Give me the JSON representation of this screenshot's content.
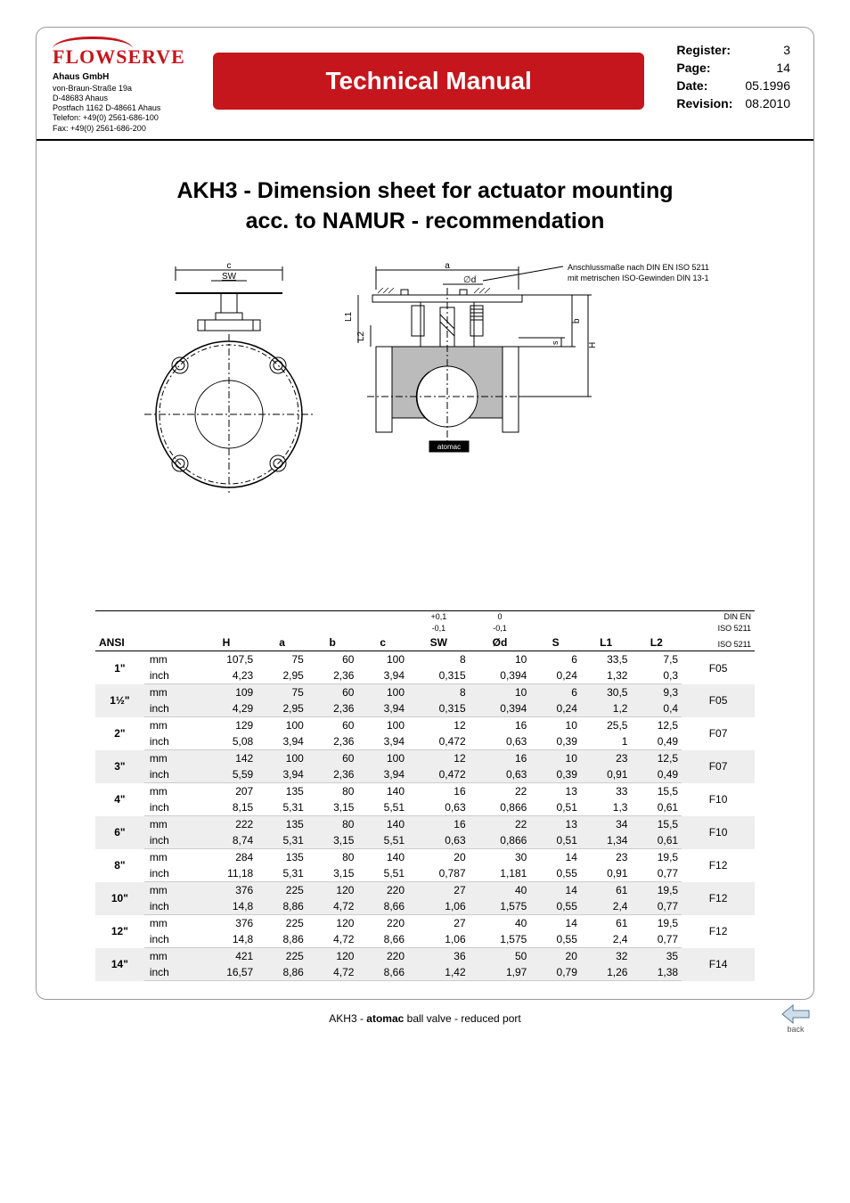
{
  "header": {
    "logo_text": "FLOWSERVE",
    "company_name": "Ahaus GmbH",
    "address_lines": [
      "von-Braun-Straße 19a",
      "D-48683 Ahaus",
      "Postfach 1162 D-48661 Ahaus",
      "Telefon: +49(0) 2561-686-100",
      "Fax: +49(0) 2561-686-200"
    ],
    "banner_title": "Technical Manual",
    "meta": {
      "register_label": "Register:",
      "register_value": "3",
      "page_label": "Page:",
      "page_value": "14",
      "date_label": "Date:",
      "date_value": "05.1996",
      "revision_label": "Revision:",
      "revision_value": "08.2010"
    }
  },
  "title_line1": "AKH3 - Dimension sheet for actuator mounting",
  "title_line2": "acc. to  NAMUR - recommendation",
  "diagram_note_line1": "Anschlussmaße nach DIN EN ISO 5211",
  "diagram_note_line2": "mit metrischen ISO-Gewinden DIN 13-1",
  "diagram_labels": {
    "c": "c",
    "SW": "SW",
    "a": "a",
    "phi_d": "∅d",
    "L1": "L1",
    "L2": "L2",
    "b": "b",
    "s": "s",
    "H": "H",
    "brand": "atomac"
  },
  "table": {
    "head": {
      "ansi": "ANSI",
      "H": "H",
      "a": "a",
      "b": "b",
      "c": "c",
      "SW": "SW",
      "SW_tol_top": "+0,1",
      "SW_tol_bot": "-0,1",
      "Od": "Ød",
      "Od_tol_top": "0",
      "Od_tol_bot": "-0,1",
      "S": "S",
      "L1": "L1",
      "L2": "L2",
      "iso_top": "DIN EN",
      "iso_mid": "ISO 5211",
      "iso_bot": "ISO 5211"
    },
    "rows": [
      {
        "size": "1\"",
        "unit1": "mm",
        "unit2": "inch",
        "iso": "F05",
        "mm": {
          "H": "107,5",
          "a": "75",
          "b": "60",
          "c": "100",
          "SW": "8",
          "Od": "10",
          "S": "6",
          "L1": "33,5",
          "L2": "7,5"
        },
        "in": {
          "H": "4,23",
          "a": "2,95",
          "b": "2,36",
          "c": "3,94",
          "SW": "0,315",
          "Od": "0,394",
          "S": "0,24",
          "L1": "1,32",
          "L2": "0,3"
        }
      },
      {
        "size": "1½\"",
        "unit1": "mm",
        "unit2": "inch",
        "iso": "F05",
        "alt": true,
        "mm": {
          "H": "109",
          "a": "75",
          "b": "60",
          "c": "100",
          "SW": "8",
          "Od": "10",
          "S": "6",
          "L1": "30,5",
          "L2": "9,3"
        },
        "in": {
          "H": "4,29",
          "a": "2,95",
          "b": "2,36",
          "c": "3,94",
          "SW": "0,315",
          "Od": "0,394",
          "S": "0,24",
          "L1": "1,2",
          "L2": "0,4"
        }
      },
      {
        "size": "2\"",
        "unit1": "mm",
        "unit2": "inch",
        "iso": "F07",
        "mm": {
          "H": "129",
          "a": "100",
          "b": "60",
          "c": "100",
          "SW": "12",
          "Od": "16",
          "S": "10",
          "L1": "25,5",
          "L2": "12,5"
        },
        "in": {
          "H": "5,08",
          "a": "3,94",
          "b": "2,36",
          "c": "3,94",
          "SW": "0,472",
          "Od": "0,63",
          "S": "0,39",
          "L1": "1",
          "L2": "0,49"
        }
      },
      {
        "size": "3\"",
        "unit1": "mm",
        "unit2": "inch",
        "iso": "F07",
        "alt": true,
        "mm": {
          "H": "142",
          "a": "100",
          "b": "60",
          "c": "100",
          "SW": "12",
          "Od": "16",
          "S": "10",
          "L1": "23",
          "L2": "12,5"
        },
        "in": {
          "H": "5,59",
          "a": "3,94",
          "b": "2,36",
          "c": "3,94",
          "SW": "0,472",
          "Od": "0,63",
          "S": "0,39",
          "L1": "0,91",
          "L2": "0,49"
        }
      },
      {
        "size": "4\"",
        "unit1": "mm",
        "unit2": "inch",
        "iso": "F10",
        "mm": {
          "H": "207",
          "a": "135",
          "b": "80",
          "c": "140",
          "SW": "16",
          "Od": "22",
          "S": "13",
          "L1": "33",
          "L2": "15,5"
        },
        "in": {
          "H": "8,15",
          "a": "5,31",
          "b": "3,15",
          "c": "5,51",
          "SW": "0,63",
          "Od": "0,866",
          "S": "0,51",
          "L1": "1,3",
          "L2": "0,61"
        }
      },
      {
        "size": "6\"",
        "unit1": "mm",
        "unit2": "inch",
        "iso": "F10",
        "alt": true,
        "mm": {
          "H": "222",
          "a": "135",
          "b": "80",
          "c": "140",
          "SW": "16",
          "Od": "22",
          "S": "13",
          "L1": "34",
          "L2": "15,5"
        },
        "in": {
          "H": "8,74",
          "a": "5,31",
          "b": "3,15",
          "c": "5,51",
          "SW": "0,63",
          "Od": "0,866",
          "S": "0,51",
          "L1": "1,34",
          "L2": "0,61"
        }
      },
      {
        "size": "8\"",
        "unit1": "mm",
        "unit2": "inch",
        "iso": "F12",
        "mm": {
          "H": "284",
          "a": "135",
          "b": "80",
          "c": "140",
          "SW": "20",
          "Od": "30",
          "S": "14",
          "L1": "23",
          "L2": "19,5"
        },
        "in": {
          "H": "11,18",
          "a": "5,31",
          "b": "3,15",
          "c": "5,51",
          "SW": "0,787",
          "Od": "1,181",
          "S": "0,55",
          "L1": "0,91",
          "L2": "0,77"
        }
      },
      {
        "size": "10\"",
        "unit1": "mm",
        "unit2": "inch",
        "iso": "F12",
        "alt": true,
        "mm": {
          "H": "376",
          "a": "225",
          "b": "120",
          "c": "220",
          "SW": "27",
          "Od": "40",
          "S": "14",
          "L1": "61",
          "L2": "19,5"
        },
        "in": {
          "H": "14,8",
          "a": "8,86",
          "b": "4,72",
          "c": "8,66",
          "SW": "1,06",
          "Od": "1,575",
          "S": "0,55",
          "L1": "2,4",
          "L2": "0,77"
        }
      },
      {
        "size": "12\"",
        "unit1": "mm",
        "unit2": "inch",
        "iso": "F12",
        "mm": {
          "H": "376",
          "a": "225",
          "b": "120",
          "c": "220",
          "SW": "27",
          "Od": "40",
          "S": "14",
          "L1": "61",
          "L2": "19,5"
        },
        "in": {
          "H": "14,8",
          "a": "8,86",
          "b": "4,72",
          "c": "8,66",
          "SW": "1,06",
          "Od": "1,575",
          "S": "0,55",
          "L1": "2,4",
          "L2": "0,77"
        }
      },
      {
        "size": "14\"",
        "unit1": "mm",
        "unit2": "inch",
        "iso": "F14",
        "alt": true,
        "mm": {
          "H": "421",
          "a": "225",
          "b": "120",
          "c": "220",
          "SW": "36",
          "Od": "50",
          "S": "20",
          "L1": "32",
          "L2": "35"
        },
        "in": {
          "H": "16,57",
          "a": "8,86",
          "b": "4,72",
          "c": "8,66",
          "SW": "1,42",
          "Od": "1,97",
          "S": "0,79",
          "L1": "1,26",
          "L2": "1,38"
        }
      }
    ]
  },
  "footer": {
    "prefix": "AKH3 - ",
    "brand": "atomac",
    "suffix": " ball valve - reduced port",
    "back_label": "back"
  },
  "colors": {
    "brand_red": "#c4161c",
    "alt_row": "#eeeeee"
  }
}
